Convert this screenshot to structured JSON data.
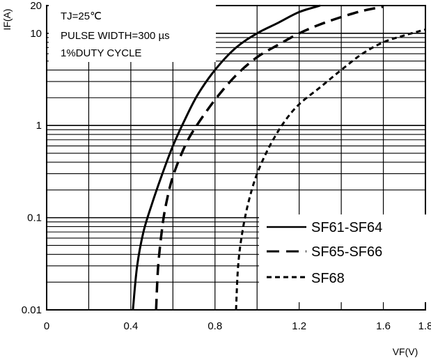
{
  "chart_data": {
    "type": "line",
    "title": "",
    "xlabel": "VF(V)",
    "ylabel": "IF(A)",
    "xlim": [
      0,
      1.8
    ],
    "ylim": [
      0.01,
      20
    ],
    "yscale": "log",
    "grid": true,
    "legend_position": "bottom-right",
    "x_ticks": [
      {
        "value": 0,
        "label": "0"
      },
      {
        "value": 0.4,
        "label": "0.4"
      },
      {
        "value": 0.8,
        "label": "0.8"
      },
      {
        "value": 1.2,
        "label": "1.2"
      },
      {
        "value": 1.6,
        "label": "1.6"
      },
      {
        "value": 1.8,
        "label": "1.8"
      }
    ],
    "y_ticks": [
      {
        "value": 0.01,
        "label": "0.01"
      },
      {
        "value": 0.1,
        "label": "0.1"
      },
      {
        "value": 1,
        "label": "1"
      },
      {
        "value": 10,
        "label": "10"
      },
      {
        "value": 20,
        "label": "20"
      }
    ],
    "annotations": {
      "tj": "TJ=25℃",
      "pulse": "PULSE WIDTH=300 µs",
      "duty": "1%DUTY CYCLE"
    },
    "series": [
      {
        "name": "SF61-SF64",
        "style": "solid",
        "x": [
          0.41,
          0.43,
          0.46,
          0.5,
          0.55,
          0.6,
          0.66,
          0.72,
          0.8,
          0.9,
          1.0,
          1.1,
          1.2,
          1.3
        ],
        "y": [
          0.01,
          0.03,
          0.07,
          0.14,
          0.3,
          0.6,
          1.2,
          2.2,
          4,
          7,
          10,
          13,
          17,
          20
        ]
      },
      {
        "name": "SF65-SF66",
        "style": "dashed",
        "x": [
          0.52,
          0.53,
          0.55,
          0.57,
          0.6,
          0.65,
          0.7,
          0.8,
          0.9,
          1.0,
          1.1,
          1.2,
          1.3,
          1.4,
          1.5,
          1.6
        ],
        "y": [
          0.01,
          0.03,
          0.08,
          0.15,
          0.28,
          0.55,
          0.9,
          1.9,
          3.5,
          5.5,
          7.5,
          10,
          12.5,
          15,
          17.5,
          19.5
        ]
      },
      {
        "name": "SF68",
        "style": "dotted",
        "x": [
          0.9,
          0.91,
          0.93,
          0.96,
          1.0,
          1.06,
          1.13,
          1.2,
          1.3,
          1.4,
          1.5,
          1.6,
          1.7,
          1.8
        ],
        "y": [
          0.01,
          0.03,
          0.07,
          0.15,
          0.3,
          0.6,
          1.1,
          1.7,
          2.6,
          4,
          6,
          8,
          9.5,
          11
        ]
      }
    ]
  },
  "colors": {
    "line": "#000000",
    "grid": "#000000",
    "background": "#ffffff"
  }
}
